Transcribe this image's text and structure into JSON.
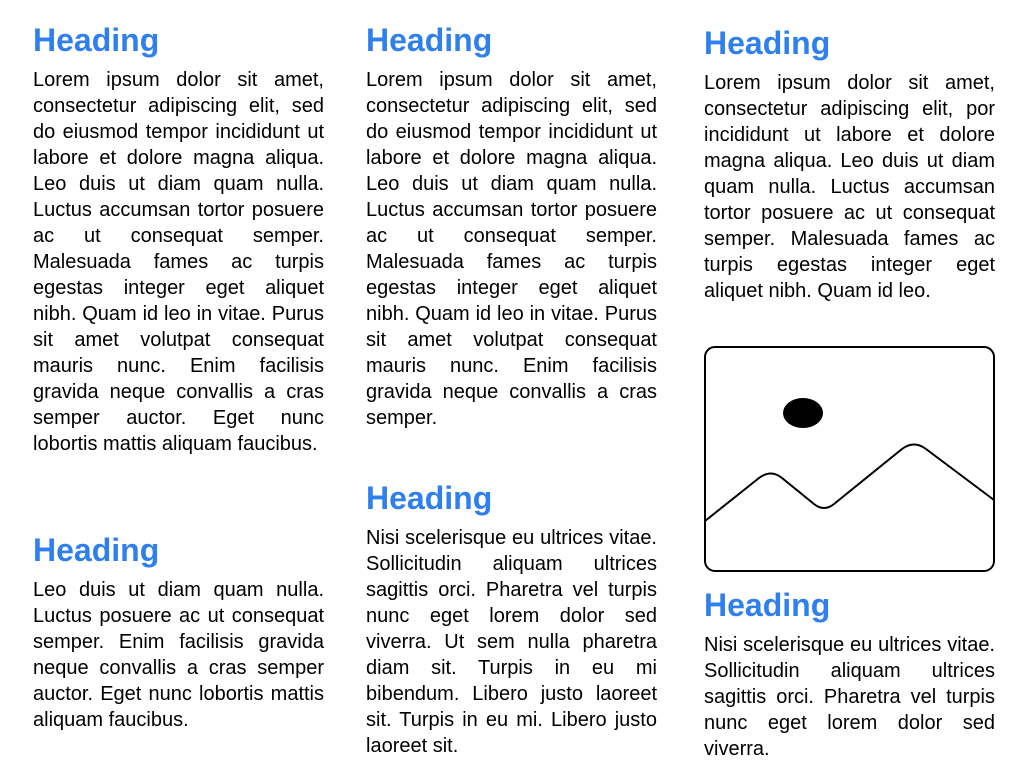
{
  "columns": [
    {
      "sections": [
        {
          "heading": "Heading",
          "body": "Lorem ipsum dolor sit amet, consectetur adipiscing elit, sed do eiusmod tempor incididunt ut labore et dolore magna aliqua. Leo duis ut diam quam nulla. Luctus accumsan tortor posuere ac ut consequat semper. Malesuada fames ac turpis egestas integer eget aliquet nibh. Quam id leo in vitae. Purus sit amet volutpat consequat mauris nunc. Enim facilisis gravida neque convallis a cras semper auctor. Eget nunc lobortis mattis aliquam faucibus."
        },
        {
          "heading": "Heading",
          "body": "Leo duis ut diam quam nulla. Luctus posuere ac ut consequat semper. Enim facilisis gravida neque convallis a cras semper auctor. Eget nunc lobortis mattis aliquam faucibus."
        }
      ]
    },
    {
      "sections": [
        {
          "heading": "Heading",
          "body": "Lorem ipsum dolor sit amet, consectetur adipiscing elit, sed do eiusmod tempor incididunt ut labore et dolore magna aliqua. Leo duis ut diam quam nulla. Luctus accumsan tortor posuere ac ut consequat semper. Malesuada fames ac turpis egestas integer eget aliquet nibh. Quam id leo in vitae. Purus sit amet volutpat consequat mauris nunc. Enim facilisis gravida neque convallis a cras semper."
        },
        {
          "heading": "Heading",
          "body": "Nisi scelerisque eu ultrices vitae. Sollicitudin aliquam ultrices sagittis orci. Pharetra vel turpis nunc eget lorem dolor sed viverra. Ut sem nulla pharetra diam sit. Turpis in eu mi bibendum. Libero justo laoreet sit. Turpis in eu mi. Libero justo laoreet sit."
        }
      ]
    },
    {
      "sections": [
        {
          "heading": "Heading",
          "body": "Lorem ipsum dolor sit amet, consectetur adipiscing elit, por incididunt ut labore et dolore magna aliqua. Leo duis ut diam quam nulla. Luctus accumsan tortor posuere ac ut consequat semper. Malesuada fames ac turpis egestas integer eget aliquet nibh. Quam id leo."
        },
        {
          "heading": "Heading",
          "body": "Nisi scelerisque eu ultrices vitae. Sollicitudin aliquam ultrices sagittis orci. Pharetra vel turpis nunc eget lorem dolor sed viverra."
        }
      ],
      "image_icon": "image-placeholder-icon"
    }
  ],
  "colors": {
    "heading": "#2f80ed",
    "body_text": "#000000",
    "background": "#ffffff"
  }
}
